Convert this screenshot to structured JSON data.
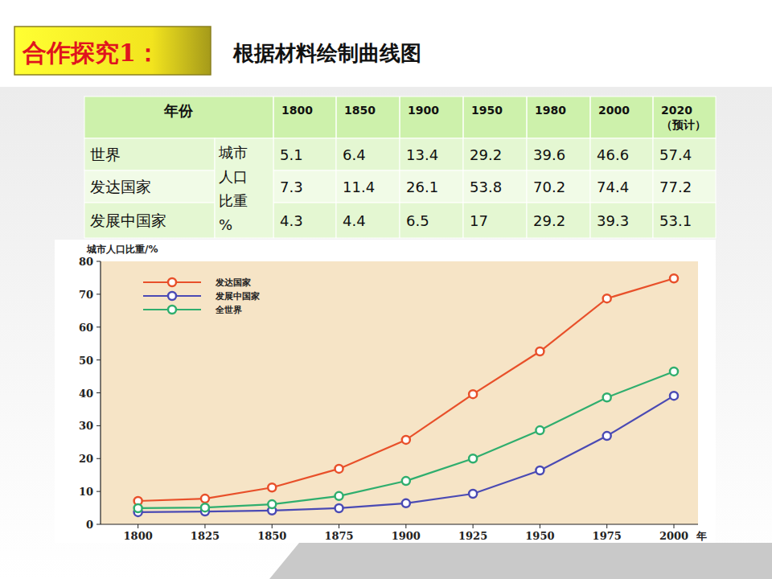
{
  "header": {
    "badge": "合作探究1：",
    "title": "根据材料绘制曲线图"
  },
  "table": {
    "year_label": "年份",
    "years": [
      "1800",
      "1850",
      "1900",
      "1950",
      "1980",
      "2000",
      "2020（预计）"
    ],
    "unit": "城市人口比重%",
    "rows": [
      {
        "name": "世界",
        "values": [
          5.1,
          6.4,
          13.4,
          29.2,
          39.6,
          46.6,
          57.4
        ]
      },
      {
        "name": "发达国家",
        "values": [
          7.3,
          11.4,
          26.1,
          53.8,
          70.2,
          74.4,
          77.2
        ]
      },
      {
        "name": "发展中国家",
        "values": [
          4.3,
          4.4,
          6.5,
          17,
          29.2,
          39.3,
          53.1
        ]
      }
    ]
  },
  "chart_data": {
    "type": "line",
    "y_label": "城市人口比重/%",
    "x_label": "年",
    "x": [
      1800,
      1825,
      1850,
      1875,
      1900,
      1925,
      1950,
      1975,
      2000
    ],
    "xlim": [
      1786,
      2009
    ],
    "xticks": [
      1800,
      1825,
      1850,
      1875,
      1900,
      1925,
      1950,
      1975,
      2000
    ],
    "ylim": [
      0,
      80
    ],
    "yticks": [
      0,
      10,
      20,
      30,
      40,
      50,
      60,
      70,
      80
    ],
    "grid": false,
    "legend": "upper left",
    "marker": "circle",
    "series": [
      {
        "name": "发达国家",
        "color": "#e8502a",
        "values": [
          7.1,
          7.8,
          11.2,
          16.9,
          25.7,
          39.6,
          52.6,
          68.7,
          74.8
        ]
      },
      {
        "name": "发展中国家",
        "color": "#4a4ab4",
        "values": [
          3.7,
          3.9,
          4.2,
          4.9,
          6.4,
          9.3,
          16.4,
          26.9,
          39.1
        ]
      },
      {
        "name": "全世界",
        "color": "#2fae6e",
        "values": [
          4.9,
          5.1,
          6.1,
          8.6,
          13.2,
          20.0,
          28.6,
          38.6,
          46.5
        ]
      }
    ]
  }
}
